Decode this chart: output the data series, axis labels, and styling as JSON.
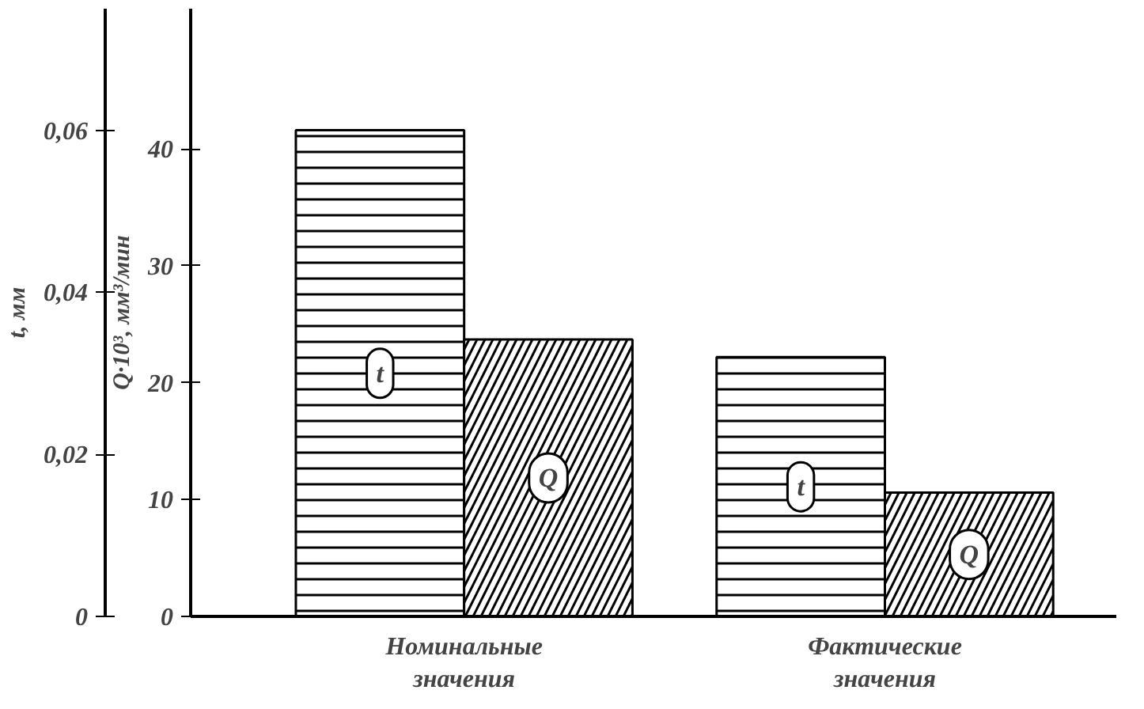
{
  "chart_data": {
    "type": "bar",
    "categories": [
      "Номинальные\nзначения",
      "Фактические\nзначения"
    ],
    "ylabel": "Q·10³, мм³/мин",
    "y2label": "t, мм",
    "ylim": [
      0,
      52
    ],
    "yticks": [
      0,
      10,
      20,
      30,
      40
    ],
    "y2lim": [
      0,
      0.075
    ],
    "y2ticks": [
      {
        "value": 0,
        "label": "0"
      },
      {
        "value": 0.02,
        "label": "0,02"
      },
      {
        "value": 0.04,
        "label": "0,04"
      },
      {
        "value": 0.06,
        "label": "0,06"
      }
    ],
    "series": [
      {
        "name": "t",
        "color": "#000000",
        "values": [
          0.06,
          0.032
        ],
        "axis": "y2"
      },
      {
        "name": "Q",
        "color": "#000000",
        "values": [
          23.7,
          10.6
        ]
      }
    ],
    "grid": false
  }
}
